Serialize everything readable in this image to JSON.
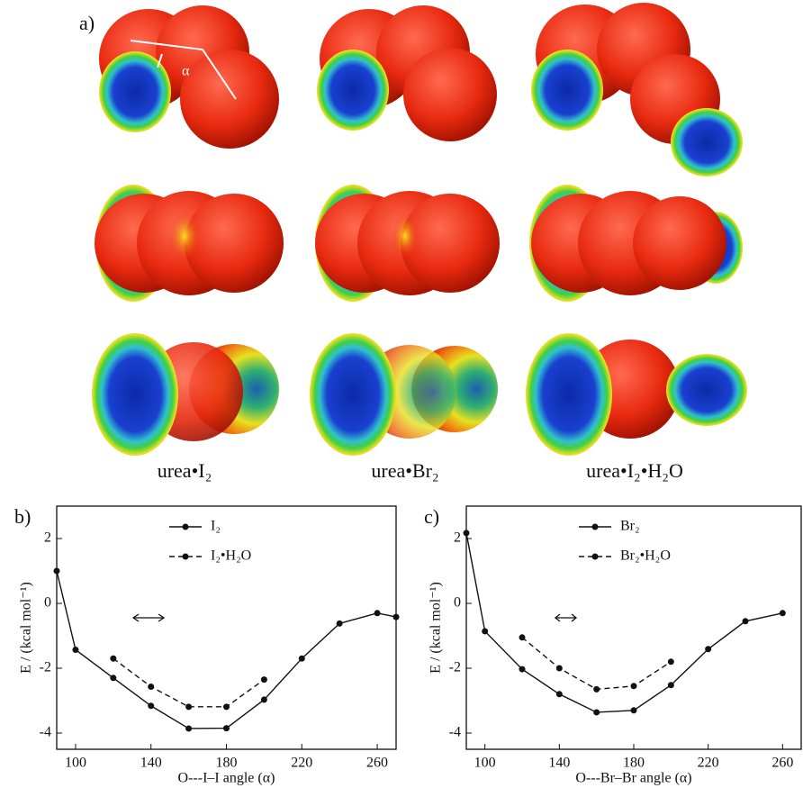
{
  "figure": {
    "panel_label": "a)",
    "molecule_labels": [
      "urea•I₂",
      "urea•Br₂",
      "urea•I₂•H₂O"
    ],
    "angle_symbol": "α"
  },
  "chart_data": [
    {
      "type": "line",
      "panel_label": "b)",
      "xlabel": "O---I–I angle (α)",
      "ylabel": "E / (kcal mol⁻¹)",
      "xlim": [
        90,
        270
      ],
      "ylim": [
        -4.5,
        3
      ],
      "xticks": [
        100,
        140,
        180,
        220,
        260
      ],
      "yticks": [
        -4,
        -2,
        0,
        2
      ],
      "legend": "upper center",
      "series": [
        {
          "name": "I₂",
          "color": "#111111",
          "line_style": "solid",
          "x": [
            90,
            100,
            120,
            140,
            160,
            180,
            200,
            220,
            240,
            260,
            270
          ],
          "values": [
            1.0,
            -1.43,
            -2.3,
            -3.16,
            -3.86,
            -3.85,
            -2.97,
            -1.7,
            -0.62,
            -0.3,
            -0.42
          ]
        },
        {
          "name": "I₂•H₂O",
          "color": "#111111",
          "line_style": "dashed",
          "x": [
            120,
            140,
            160,
            180,
            200
          ],
          "values": [
            -1.7,
            -2.57,
            -3.19,
            -3.19,
            -2.35
          ]
        }
      ]
    },
    {
      "type": "line",
      "panel_label": "c)",
      "xlabel": "O---Br–Br angle (α)",
      "ylabel": "E / (kcal mol⁻¹)",
      "xlim": [
        90,
        270
      ],
      "ylim": [
        -4.5,
        3
      ],
      "xticks": [
        100,
        140,
        180,
        220,
        260
      ],
      "yticks": [
        -4,
        -2,
        0,
        2
      ],
      "legend": "upper center",
      "series": [
        {
          "name": "Br₂",
          "color": "#111111",
          "line_style": "solid",
          "x": [
            90,
            100,
            120,
            140,
            160,
            180,
            200,
            220,
            240,
            260
          ],
          "values": [
            2.17,
            -0.86,
            -2.03,
            -2.8,
            -3.36,
            -3.3,
            -2.52,
            -1.41,
            -0.55,
            -0.3
          ]
        },
        {
          "name": "Br₂•H₂O",
          "color": "#111111",
          "line_style": "dashed",
          "x": [
            120,
            140,
            160,
            180,
            200
          ],
          "values": [
            -1.05,
            -2.0,
            -2.65,
            -2.55,
            -1.8
          ]
        }
      ]
    }
  ]
}
